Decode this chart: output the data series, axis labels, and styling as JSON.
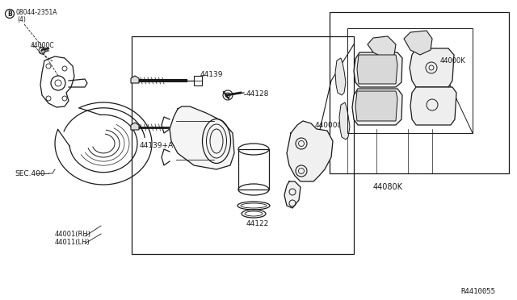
{
  "bg_color": "#ffffff",
  "line_color": "#1a1a1a",
  "fig_width": 6.4,
  "fig_height": 3.72,
  "labels": {
    "bolt_ref": "B",
    "bolt_num": "08044-2351A",
    "bolt_qty": "(4)",
    "44000C": "44000C",
    "SEC400": "SEC.400",
    "44001RH": "44001(RH)",
    "44011LH": "44011(LH)",
    "44139": "44139",
    "44128": "44128",
    "44139A": "44139+A",
    "44122": "44122",
    "44000L": "44000L",
    "44000K": "44000K",
    "44080K": "44080K",
    "R4410055": "R4410055"
  }
}
